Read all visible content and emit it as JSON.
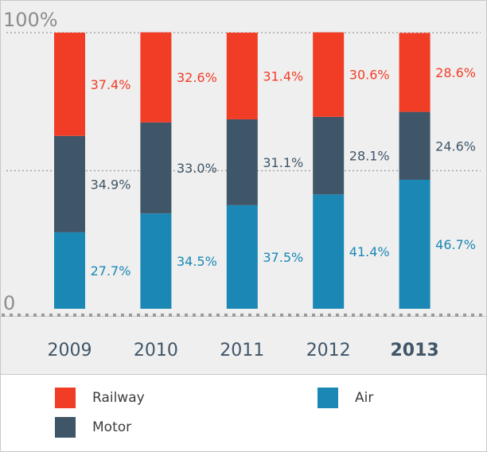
{
  "colors": {
    "railway": "#f23d26",
    "motor": "#3f5668",
    "air": "#1a87b5",
    "axis_text": "#8c8c8c",
    "year_text": "#3f5668"
  },
  "chart_data": {
    "type": "bar",
    "stacked": true,
    "categories": [
      "2009",
      "2010",
      "2011",
      "2012",
      "2013"
    ],
    "highlight_category": "2013",
    "series": [
      {
        "name": "Air",
        "values": [
          27.7,
          34.5,
          37.5,
          41.4,
          46.7
        ],
        "labels": [
          "27.7%",
          "34.5%",
          "37.5%",
          "41.4%",
          "46.7%"
        ]
      },
      {
        "name": "Motor",
        "values": [
          34.9,
          33.0,
          31.1,
          28.1,
          24.6
        ],
        "labels": [
          "34.9%",
          "33.0%",
          "31.1%",
          "28.1%",
          "24.6%"
        ]
      },
      {
        "name": "Railway",
        "values": [
          37.4,
          32.6,
          31.4,
          30.6,
          28.6
        ],
        "labels": [
          "37.4%",
          "32.6%",
          "31.4%",
          "30.6%",
          "28.6%"
        ]
      }
    ],
    "ylim": [
      0,
      100
    ],
    "ytick_labels": [
      "0",
      "100%"
    ],
    "grid": true,
    "legend_position": "bottom"
  },
  "legend": {
    "railway": "Railway",
    "motor": "Motor",
    "air": "Air"
  }
}
